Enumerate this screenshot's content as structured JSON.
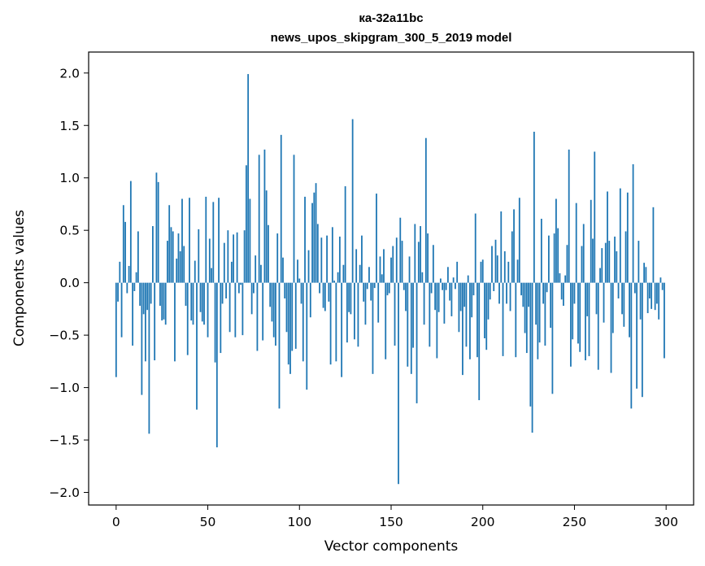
{
  "chart_data": {
    "type": "bar",
    "title": "ка-32а11bc",
    "subtitle": "news_upos_skipgram_300_5_2019 model",
    "xlabel": "Vector components",
    "ylabel": "Components values",
    "xlim": [
      -15,
      315
    ],
    "ylim": [
      -2.12,
      2.2
    ],
    "xticks": [
      0,
      50,
      100,
      150,
      200,
      250,
      300
    ],
    "yticks": [
      -2.0,
      -1.5,
      -1.0,
      -0.5,
      0.0,
      0.5,
      1.0,
      1.5,
      2.0
    ],
    "ytick_labels": [
      "−2.0",
      "−1.5",
      "−1.0",
      "−0.5",
      "0.0",
      "0.5",
      "1.0",
      "1.5",
      "2.0"
    ],
    "grid": false,
    "bar_color": "#1f77b4",
    "values": [
      -0.9,
      -0.18,
      0.2,
      -0.52,
      0.74,
      0.58,
      -0.1,
      0.16,
      0.97,
      -0.6,
      -0.08,
      0.1,
      0.49,
      -0.22,
      -1.07,
      -0.3,
      -0.75,
      -0.26,
      -1.44,
      -0.2,
      0.54,
      -0.74,
      1.05,
      0.96,
      -0.22,
      -0.36,
      -0.35,
      -0.4,
      0.4,
      0.74,
      0.53,
      0.49,
      -0.75,
      0.23,
      0.47,
      0.3,
      0.8,
      0.35,
      -0.22,
      -0.69,
      0.81,
      -0.36,
      -0.4,
      0.21,
      -1.21,
      0.51,
      -0.28,
      -0.37,
      -0.4,
      0.82,
      -0.52,
      0.42,
      0.14,
      0.77,
      -0.76,
      -1.57,
      0.81,
      -0.67,
      -0.2,
      0.38,
      -0.15,
      0.5,
      -0.47,
      0.2,
      0.46,
      -0.52,
      0.48,
      -0.1,
      -0.02,
      -0.5,
      0.5,
      1.12,
      1.99,
      0.8,
      -0.3,
      -0.1,
      0.26,
      -0.65,
      1.22,
      0.17,
      -0.55,
      1.27,
      0.88,
      0.55,
      -0.23,
      -0.37,
      -0.52,
      -0.6,
      0.47,
      -1.2,
      1.41,
      0.24,
      -0.15,
      -0.47,
      -0.78,
      -0.87,
      -0.65,
      1.22,
      -0.63,
      0.22,
      0.04,
      -0.2,
      -0.75,
      0.82,
      -1.02,
      0.31,
      -0.33,
      0.76,
      0.86,
      0.95,
      0.56,
      -0.1,
      0.43,
      -0.24,
      -0.27,
      0.45,
      -0.18,
      -0.78,
      0.53,
      0.02,
      -0.75,
      0.1,
      0.44,
      -0.9,
      0.17,
      0.92,
      -0.57,
      -0.28,
      -0.3,
      1.56,
      -0.54,
      0.32,
      -0.61,
      0.17,
      0.45,
      -0.18,
      -0.4,
      -0.06,
      0.15,
      -0.17,
      -0.87,
      -0.05,
      0.85,
      -0.38,
      0.25,
      0.08,
      0.32,
      -0.73,
      -0.12,
      -0.1,
      0.24,
      0.35,
      -0.6,
      0.43,
      -1.92,
      0.62,
      0.4,
      -0.07,
      -0.27,
      -0.8,
      0.25,
      -0.87,
      -0.62,
      0.56,
      -1.15,
      0.39,
      0.54,
      0.1,
      -0.4,
      1.38,
      0.47,
      -0.61,
      -0.1,
      0.36,
      -0.26,
      -0.72,
      -0.28,
      0.04,
      -0.07,
      -0.39,
      -0.07,
      0.15,
      -0.17,
      -0.32,
      0.05,
      -0.06,
      0.2,
      -0.47,
      -0.27,
      -0.88,
      -0.23,
      -0.61,
      0.07,
      -0.73,
      -0.33,
      -0.12,
      0.66,
      -0.71,
      -1.12,
      0.2,
      0.22,
      -0.53,
      -0.64,
      -0.35,
      -0.16,
      0.35,
      -0.08,
      0.41,
      0.26,
      -0.2,
      0.68,
      -0.7,
      0.3,
      -0.2,
      0.2,
      -0.27,
      0.49,
      0.7,
      -0.71,
      0.22,
      0.81,
      -0.12,
      -0.23,
      -0.48,
      -0.67,
      -0.23,
      -1.18,
      -1.43,
      1.44,
      -0.4,
      -0.73,
      -0.57,
      0.61,
      -0.2,
      -0.6,
      -0.09,
      0.45,
      -0.43,
      -1.06,
      0.47,
      0.8,
      0.52,
      0.09,
      -0.16,
      -0.22,
      0.07,
      0.36,
      1.27,
      -0.8,
      -0.54,
      -0.2,
      0.76,
      -0.58,
      -0.66,
      0.35,
      0.56,
      -0.74,
      -0.32,
      -0.7,
      0.79,
      0.42,
      1.25,
      -0.3,
      -0.83,
      0.14,
      0.33,
      -0.38,
      0.38,
      0.87,
      0.4,
      -0.86,
      -0.48,
      0.44,
      0.3,
      -0.15,
      0.9,
      -0.3,
      -0.42,
      0.49,
      0.86,
      -0.52,
      -1.2,
      1.13,
      -0.1,
      -1.01,
      0.4,
      -0.35,
      -1.09,
      0.19,
      0.15,
      -0.29,
      -0.15,
      -0.25,
      0.72,
      -0.26,
      -0.2,
      -0.35,
      0.05,
      -0.07,
      -0.72
    ]
  }
}
